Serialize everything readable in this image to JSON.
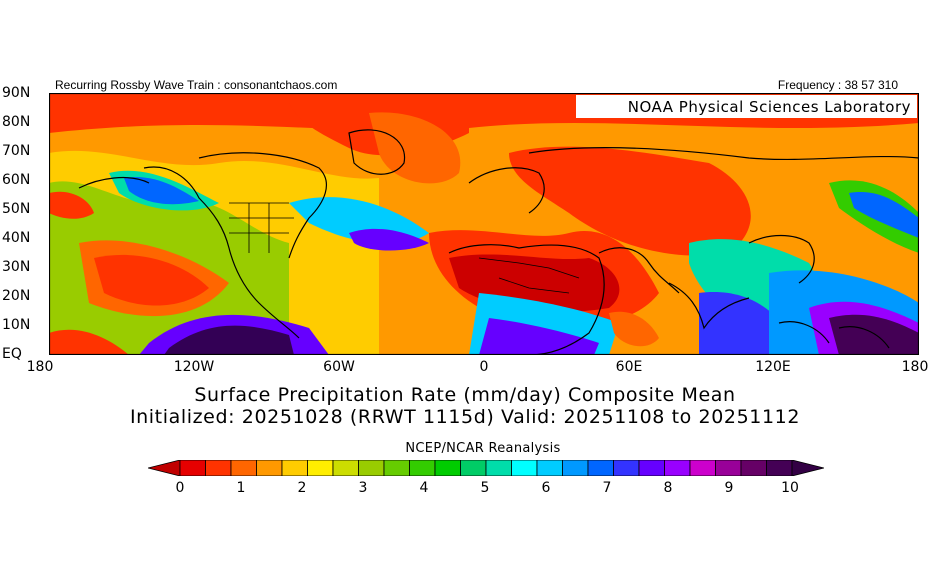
{
  "header": {
    "left": "Recurring Rossby Wave Train : consonantchaos.com",
    "right": "Frequency : 38 57 310"
  },
  "map": {
    "lat_labels": [
      "90N",
      "80N",
      "70N",
      "60N",
      "50N",
      "40N",
      "30N",
      "20N",
      "10N",
      "EQ"
    ],
    "lon_labels": [
      "180",
      "120W",
      "60W",
      "0",
      "60E",
      "120E",
      "180"
    ],
    "credit": "NOAA Physical Sciences Laboratory"
  },
  "titles": {
    "line1": "Surface Precipitation Rate (mm/day) Composite Mean",
    "line2": "Initialized: 20251028 (RRWT 1115d) Valid: 20251108 to 20251112"
  },
  "source": "NCEP/NCAR Reanalysis",
  "colorbar": {
    "labels": [
      "0",
      "1",
      "2",
      "3",
      "4",
      "5",
      "6",
      "7",
      "8",
      "9",
      "10"
    ],
    "colors": [
      "#e60000",
      "#ff3300",
      "#ff6600",
      "#ff9900",
      "#ffcc00",
      "#ffee00",
      "#ccdd00",
      "#99cc00",
      "#66cc00",
      "#33cc00",
      "#00cc00",
      "#00cc66",
      "#00ddaa",
      "#00ffff",
      "#00ccff",
      "#0099ff",
      "#0066ff",
      "#3333ff",
      "#6600ff",
      "#9900ff",
      "#cc00cc",
      "#990099",
      "#660066",
      "#440055"
    ],
    "low_color": "#c00000",
    "high_color": "#330044"
  }
}
